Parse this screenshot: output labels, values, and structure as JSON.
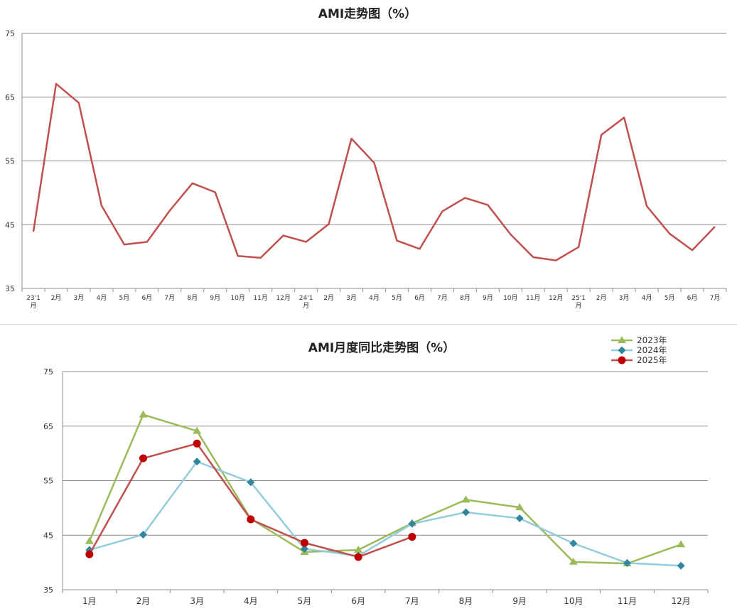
{
  "chart_data": [
    {
      "type": "line",
      "title": "AMI走势图（%）",
      "ylim": [
        35,
        75
      ],
      "yticks": [
        "75",
        "65",
        "55",
        "45",
        "35"
      ],
      "categories": [
        [
          "23'1",
          "月"
        ],
        [
          "2月"
        ],
        [
          "3月"
        ],
        [
          "4月"
        ],
        [
          "5月"
        ],
        [
          "6月"
        ],
        [
          "7月"
        ],
        [
          "8月"
        ],
        [
          "9月"
        ],
        [
          "10月"
        ],
        [
          "11月"
        ],
        [
          "12月"
        ],
        [
          "24'1",
          "月"
        ],
        [
          "2月"
        ],
        [
          "3月"
        ],
        [
          "4月"
        ],
        [
          "5月"
        ],
        [
          "6月"
        ],
        [
          "7月"
        ],
        [
          "8月"
        ],
        [
          "9月"
        ],
        [
          "10月"
        ],
        [
          "11月"
        ],
        [
          "12月"
        ],
        [
          "25'1",
          "月"
        ],
        [
          "2月"
        ],
        [
          "3月"
        ],
        [
          "4月"
        ],
        [
          "5月"
        ],
        [
          "6月"
        ],
        [
          "7月"
        ]
      ],
      "values": [
        43.9,
        67.1,
        64.1,
        48.0,
        41.9,
        42.3,
        47.2,
        51.5,
        50.1,
        40.1,
        39.8,
        43.3,
        42.3,
        45.1,
        58.5,
        54.7,
        42.5,
        41.2,
        47.1,
        49.2,
        48.1,
        43.5,
        39.9,
        39.4,
        41.5,
        59.1,
        61.8,
        47.9,
        43.6,
        41.0,
        44.7
      ],
      "color": "#c0504d",
      "grid": true
    },
    {
      "type": "line",
      "title": "AMI月度同比走势图（%）",
      "ylim": [
        35,
        75
      ],
      "yticks": [
        "75",
        "65",
        "55",
        "45",
        "35"
      ],
      "categories": [
        "1月",
        "2月",
        "3月",
        "4月",
        "5月",
        "6月",
        "7月",
        "8月",
        "9月",
        "10月",
        "11月",
        "12月"
      ],
      "grid": true,
      "legend_position": "top-right",
      "series": [
        {
          "name": "2023年",
          "color": "#9bbb59",
          "marker": "triangle",
          "values": [
            43.9,
            67.1,
            64.1,
            48.0,
            41.9,
            42.3,
            47.2,
            51.5,
            50.1,
            40.1,
            39.8,
            43.3
          ]
        },
        {
          "name": "2024年",
          "color": "#93cddd",
          "marker_color": "#31859c",
          "marker": "diamond",
          "values": [
            42.3,
            45.1,
            58.5,
            54.7,
            42.5,
            41.2,
            47.1,
            49.2,
            48.1,
            43.5,
            39.9,
            39.4
          ]
        },
        {
          "name": "2025年",
          "color": "#c0504d",
          "marker_color": "#c00000",
          "marker": "circle",
          "values": [
            41.5,
            59.1,
            61.8,
            47.9,
            43.6,
            41.0,
            44.7,
            null,
            null,
            null,
            null,
            null
          ]
        }
      ]
    }
  ]
}
